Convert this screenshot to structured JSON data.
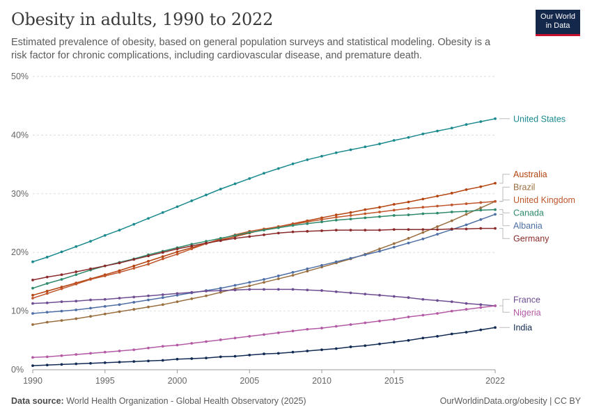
{
  "title": "Obesity in adults, 1990 to 2022",
  "subtitle": "Estimated prevalence of obesity, based on general population surveys and statistical modeling. Obesity is a risk factor for chronic complications, including cardiovascular disease, and premature death.",
  "logo": {
    "line1": "Our World",
    "line2": "in Data"
  },
  "footer": {
    "source_label": "Data source:",
    "source_text": "World Health Organization - Global Health Observatory (2025)",
    "right_text": "OurWorldinData.org/obesity | CC BY"
  },
  "chart_data": {
    "type": "line",
    "title": "Obesity in adults, 1990 to 2022",
    "xlabel": "",
    "ylabel": "",
    "x": [
      1990,
      1991,
      1992,
      1993,
      1994,
      1995,
      1996,
      1997,
      1998,
      1999,
      2000,
      2001,
      2002,
      2003,
      2004,
      2005,
      2006,
      2007,
      2008,
      2009,
      2010,
      2011,
      2012,
      2013,
      2014,
      2015,
      2016,
      2017,
      2018,
      2019,
      2020,
      2021,
      2022
    ],
    "xlim": [
      1990,
      2022
    ],
    "ylim": [
      0,
      50
    ],
    "x_ticks": [
      "1990",
      "1995",
      "2000",
      "2005",
      "2010",
      "2015",
      "2022"
    ],
    "x_tick_values": [
      1990,
      1995,
      2000,
      2005,
      2010,
      2015,
      2022
    ],
    "y_ticks": [
      "0%",
      "10%",
      "20%",
      "30%",
      "40%",
      "50%"
    ],
    "y_tick_values": [
      0,
      10,
      20,
      30,
      40,
      50
    ],
    "grid": "horizontal dashed",
    "legend": "labels at right end of lines",
    "series": [
      {
        "name": "United States",
        "color": "#1a8a8f",
        "values": [
          18.4,
          19.2,
          20.1,
          21.0,
          21.9,
          22.9,
          23.8,
          24.8,
          25.8,
          26.8,
          27.8,
          28.8,
          29.8,
          30.8,
          31.7,
          32.6,
          33.5,
          34.3,
          35.1,
          35.8,
          36.4,
          37.0,
          37.5,
          38.0,
          38.5,
          39.1,
          39.6,
          40.2,
          40.7,
          41.2,
          41.8,
          42.3,
          42.8
        ]
      },
      {
        "name": "Australia",
        "color": "#b5430f",
        "values": [
          12.7,
          13.4,
          14.1,
          14.8,
          15.5,
          16.2,
          16.9,
          17.7,
          18.5,
          19.3,
          20.1,
          20.8,
          21.5,
          22.1,
          22.7,
          23.3,
          23.9,
          24.4,
          24.9,
          25.4,
          25.9,
          26.4,
          26.8,
          27.3,
          27.7,
          28.2,
          28.6,
          29.1,
          29.6,
          30.1,
          30.7,
          31.2,
          31.8
        ]
      },
      {
        "name": "Brazil",
        "color": "#9a6f3f",
        "values": [
          7.7,
          8.1,
          8.4,
          8.7,
          9.1,
          9.5,
          9.9,
          10.3,
          10.7,
          11.1,
          11.6,
          12.1,
          12.6,
          13.2,
          13.8,
          14.3,
          14.9,
          15.5,
          16.1,
          16.8,
          17.5,
          18.2,
          18.9,
          19.7,
          20.6,
          21.5,
          22.4,
          23.4,
          24.4,
          25.4,
          26.5,
          27.6,
          28.7
        ]
      },
      {
        "name": "United Kingdom",
        "color": "#c0562c",
        "values": [
          12.2,
          13.0,
          13.8,
          14.6,
          15.4,
          16.0,
          16.6,
          17.3,
          18.0,
          18.9,
          19.7,
          20.6,
          21.5,
          22.3,
          23.0,
          23.6,
          24.0,
          24.4,
          24.8,
          25.2,
          25.6,
          26.0,
          26.3,
          26.6,
          26.9,
          27.2,
          27.5,
          27.7,
          27.9,
          28.1,
          28.3,
          28.5,
          28.7
        ]
      },
      {
        "name": "Canada",
        "color": "#2d8a6b",
        "values": [
          13.9,
          14.7,
          15.4,
          16.2,
          17.0,
          17.7,
          18.3,
          18.9,
          19.6,
          20.2,
          20.8,
          21.4,
          21.9,
          22.4,
          22.9,
          23.4,
          23.8,
          24.2,
          24.6,
          24.9,
          25.2,
          25.5,
          25.7,
          25.9,
          26.1,
          26.3,
          26.4,
          26.6,
          26.7,
          26.9,
          27.0,
          27.2,
          27.3
        ]
      },
      {
        "name": "Albania",
        "color": "#4d6fa5",
        "values": [
          9.6,
          9.8,
          10.0,
          10.2,
          10.5,
          10.8,
          11.1,
          11.5,
          11.9,
          12.3,
          12.7,
          13.1,
          13.5,
          13.9,
          14.4,
          14.9,
          15.4,
          16.0,
          16.6,
          17.2,
          17.8,
          18.4,
          19.0,
          19.6,
          20.2,
          20.9,
          21.6,
          22.3,
          23.1,
          23.9,
          24.7,
          25.6,
          26.5
        ]
      },
      {
        "name": "Germany",
        "color": "#8b2a2a",
        "values": [
          15.3,
          15.8,
          16.2,
          16.7,
          17.2,
          17.7,
          18.2,
          18.8,
          19.4,
          20.0,
          20.6,
          21.1,
          21.6,
          22.0,
          22.4,
          22.7,
          23.0,
          23.3,
          23.5,
          23.6,
          23.7,
          23.8,
          23.8,
          23.8,
          23.8,
          23.9,
          23.9,
          23.9,
          23.9,
          24.0,
          24.0,
          24.1,
          24.1
        ]
      },
      {
        "name": "France",
        "color": "#6d4c91",
        "values": [
          11.3,
          11.4,
          11.6,
          11.7,
          11.9,
          12.0,
          12.2,
          12.4,
          12.6,
          12.8,
          13.0,
          13.2,
          13.4,
          13.5,
          13.6,
          13.7,
          13.7,
          13.7,
          13.7,
          13.6,
          13.5,
          13.3,
          13.1,
          12.9,
          12.7,
          12.5,
          12.3,
          12.0,
          11.8,
          11.6,
          11.3,
          11.1,
          10.9
        ]
      },
      {
        "name": "Nigeria",
        "color": "#b45aa5",
        "values": [
          2.1,
          2.2,
          2.4,
          2.6,
          2.8,
          3.0,
          3.2,
          3.4,
          3.7,
          4.0,
          4.2,
          4.5,
          4.8,
          5.1,
          5.4,
          5.7,
          6.0,
          6.3,
          6.6,
          6.9,
          7.1,
          7.4,
          7.7,
          8.0,
          8.3,
          8.6,
          9.0,
          9.3,
          9.6,
          10.0,
          10.3,
          10.6,
          10.9
        ]
      },
      {
        "name": "India",
        "color": "#102a52",
        "values": [
          0.7,
          0.8,
          0.9,
          1.0,
          1.1,
          1.2,
          1.3,
          1.4,
          1.5,
          1.6,
          1.8,
          1.9,
          2.0,
          2.2,
          2.3,
          2.5,
          2.7,
          2.8,
          3.0,
          3.2,
          3.4,
          3.6,
          3.9,
          4.1,
          4.4,
          4.7,
          5.0,
          5.4,
          5.7,
          6.1,
          6.4,
          6.8,
          7.2
        ]
      }
    ]
  }
}
